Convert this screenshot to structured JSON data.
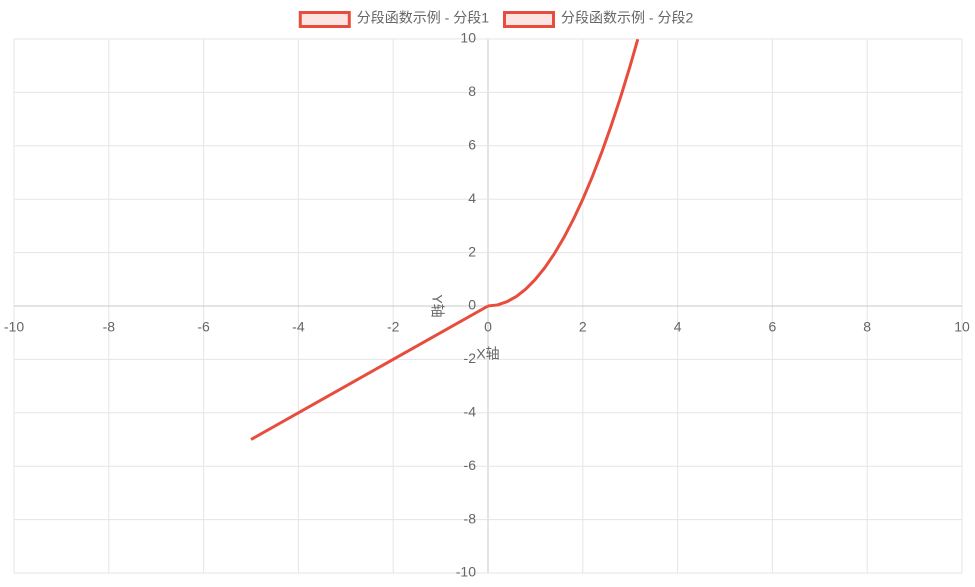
{
  "chart_data": {
    "type": "line",
    "series": [
      {
        "name": "分段函数示例 - 分段1",
        "color": "#e74c3c",
        "x": [
          -5,
          0
        ],
        "values": [
          -5,
          0
        ]
      },
      {
        "name": "分段函数示例 - 分段2",
        "color": "#e74c3c",
        "x": [
          0,
          0.2,
          0.4,
          0.6,
          0.8,
          1,
          1.2,
          1.4,
          1.6,
          1.8,
          2,
          2.2,
          2.4,
          2.6,
          2.8,
          3,
          3.16
        ],
        "values": [
          0,
          0.04,
          0.16,
          0.36,
          0.64,
          1,
          1.44,
          1.96,
          2.56,
          3.24,
          4,
          4.84,
          5.76,
          6.76,
          7.84,
          9,
          9.99
        ]
      }
    ],
    "x_label": "X轴",
    "y_label": "Y轴",
    "xlim": [
      -10,
      10
    ],
    "ylim": [
      -10,
      10
    ],
    "xticks": [
      -10,
      -8,
      -6,
      -4,
      -2,
      0,
      2,
      4,
      6,
      8,
      10
    ],
    "yticks": [
      -10,
      -8,
      -6,
      -4,
      -2,
      0,
      2,
      4,
      6,
      8,
      10
    ],
    "grid": true,
    "legend": "top"
  }
}
